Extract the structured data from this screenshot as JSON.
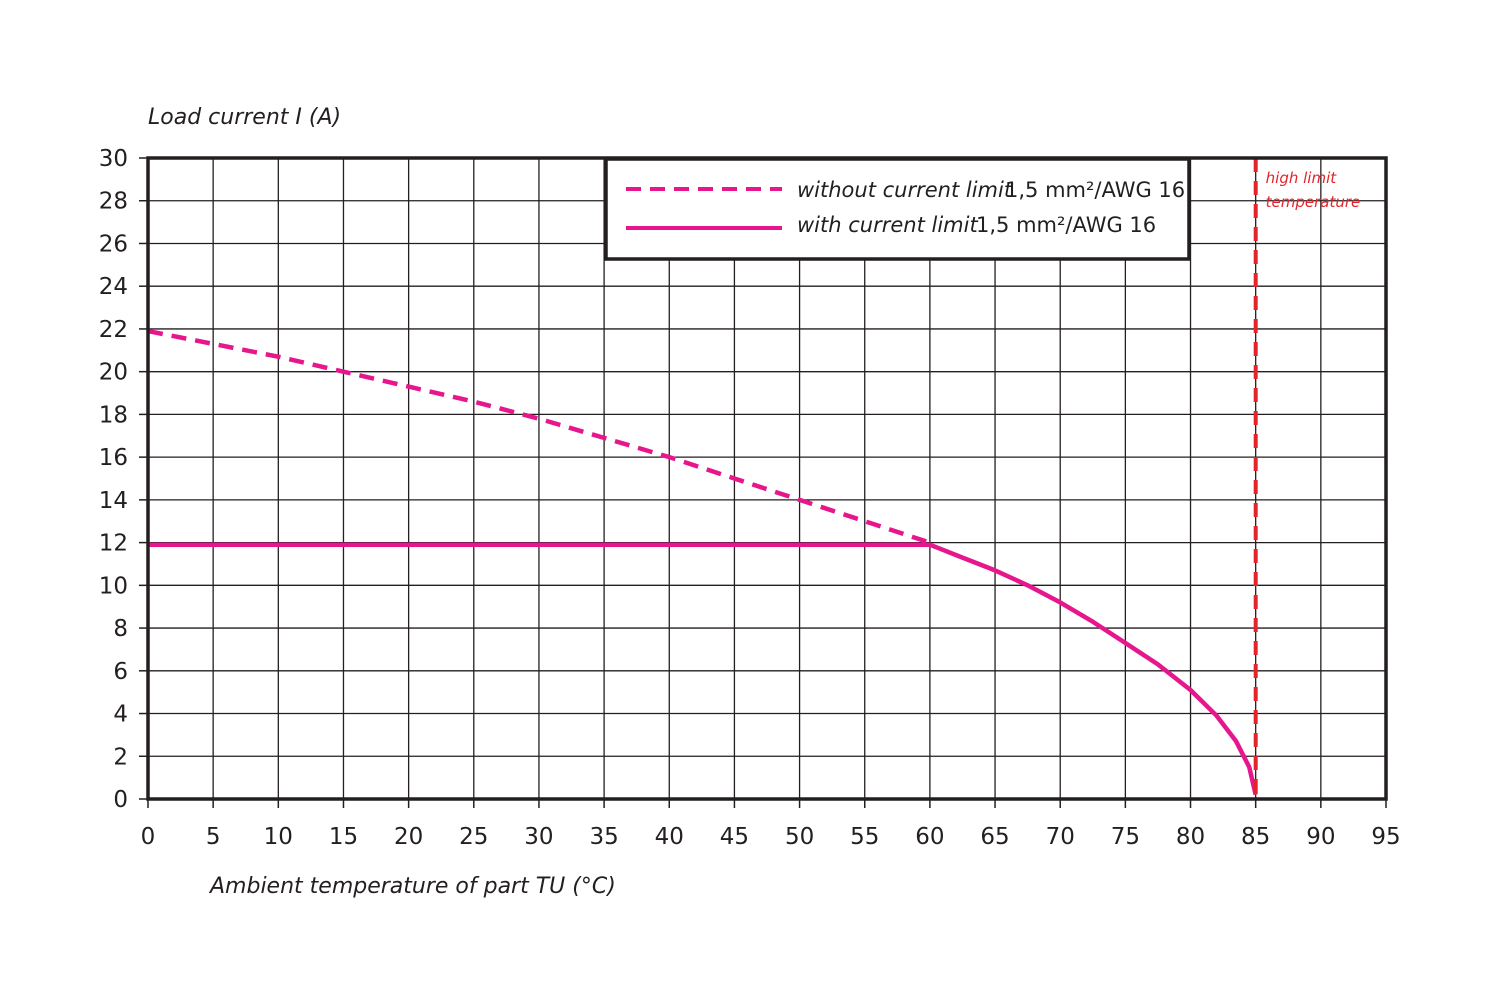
{
  "chart_data": {
    "type": "line",
    "ylabel": "Load current I (A)",
    "xlabel": "Ambient temperature of part TU (°C)",
    "xlim": [
      0,
      95
    ],
    "ylim": [
      0,
      30
    ],
    "x_ticks": [
      "0",
      "5",
      "10",
      "15",
      "20",
      "25",
      "30",
      "35",
      "40",
      "45",
      "50",
      "55",
      "60",
      "65",
      "70",
      "75",
      "80",
      "85",
      "90",
      "95"
    ],
    "y_ticks": [
      "0",
      "2",
      "4",
      "6",
      "8",
      "10",
      "12",
      "14",
      "16",
      "18",
      "20",
      "22",
      "24",
      "26",
      "28",
      "30"
    ],
    "grid": true,
    "legend_position": "top",
    "series": [
      {
        "name": "without current limit",
        "spec": "1,5 mm²/AWG 16",
        "style": "dashed",
        "color": "#e6168c",
        "x": [
          0,
          5,
          10,
          15,
          20,
          25,
          30,
          35,
          40,
          45,
          50,
          55,
          60
        ],
        "y": [
          21.9,
          21.3,
          20.7,
          20.0,
          19.3,
          18.6,
          17.8,
          16.9,
          16.0,
          15.0,
          14.0,
          13.0,
          12.0
        ]
      },
      {
        "name": "with current limit",
        "spec": "1,5 mm²/AWG 16",
        "style": "solid",
        "color": "#e6168c",
        "x": [
          0,
          10,
          20,
          30,
          40,
          50,
          60,
          62.5,
          65,
          67.5,
          70,
          72.5,
          75,
          77.5,
          80,
          82,
          83.5,
          84.5,
          85
        ],
        "y": [
          11.9,
          11.9,
          11.9,
          11.9,
          11.9,
          11.9,
          11.9,
          11.3,
          10.7,
          10.0,
          9.2,
          8.3,
          7.3,
          6.3,
          5.1,
          3.9,
          2.7,
          1.5,
          0.2
        ]
      }
    ],
    "annotations": [
      {
        "text_line1": "high limit",
        "text_line2": "temperature",
        "x": 85,
        "style": "dashed",
        "color": "#e3242b"
      }
    ]
  }
}
